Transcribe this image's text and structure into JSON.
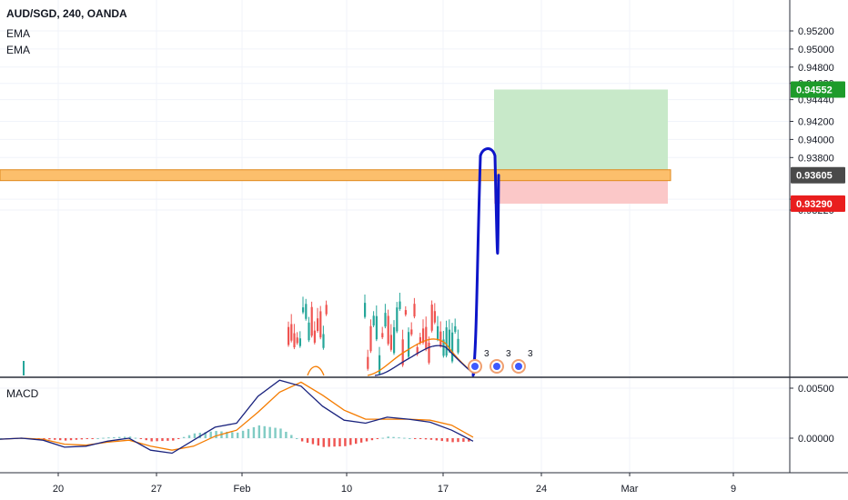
{
  "symbol_title": "AUD/SGD, 240, OANDA",
  "indicators": [
    "EMA",
    "EMA"
  ],
  "macd_label": "MACD",
  "event_badge_count": "3",
  "chart_data": {
    "type": "candlestick",
    "symbol": "AUD/SGD",
    "interval": "240",
    "broker": "OANDA",
    "price_ticks": [
      0.952,
      0.95,
      0.948,
      0.9462,
      0.9444,
      0.942,
      0.94,
      0.938,
      0.9334,
      0.9322
    ],
    "price_tick_labels": [
      "0.95200",
      "0.95000",
      "0.94800",
      "0.94620",
      "0.94440",
      "0.94200",
      "0.94000",
      "0.93800",
      "0.93400",
      "0.93220"
    ],
    "ylim": [
      0.9319,
      0.9537
    ],
    "price_badges": [
      {
        "label": "0.94552",
        "value": 0.94552,
        "color": "#1e9b2a"
      },
      {
        "label": "0.93605",
        "value": 0.93605,
        "color": "#4a4a4a"
      },
      {
        "label": "0.93290",
        "value": 0.9329,
        "color": "#e91e1e"
      }
    ],
    "resistance_zone": [
      0.93545,
      0.93665
    ],
    "position": {
      "entry": 0.93605,
      "target": 0.94552,
      "stop": 0.9329
    },
    "projection_peak": 0.939,
    "time_labels": [
      "20",
      "27",
      "Feb",
      "10",
      "17",
      "24",
      "Mar",
      "9"
    ],
    "macd": {
      "ticks": [
        0.005,
        0.0
      ],
      "tick_labels": [
        "0.00500",
        "0.00000"
      ],
      "ylim": [
        -0.003,
        0.0066
      ],
      "macd_line": [
        -0.0001,
        0.0,
        -0.0002,
        -0.0009,
        -0.0008,
        -0.0003,
        0.0,
        -0.0012,
        -0.0015,
        -0.0002,
        0.0011,
        0.0015,
        0.0042,
        0.0058,
        0.0052,
        0.0032,
        0.0018,
        0.0015,
        0.0021,
        0.0019,
        0.0016,
        0.0008,
        -0.0003
      ],
      "signal_line": [
        -0.0001,
        0.0,
        -0.0001,
        -0.0006,
        -0.0007,
        -0.0004,
        -0.0002,
        -0.0008,
        -0.0012,
        -0.0008,
        0.0002,
        0.0008,
        0.0026,
        0.0046,
        0.0056,
        0.0043,
        0.0028,
        0.0019,
        0.0019,
        0.0019,
        0.0018,
        0.0013,
        0.0001
      ]
    }
  }
}
